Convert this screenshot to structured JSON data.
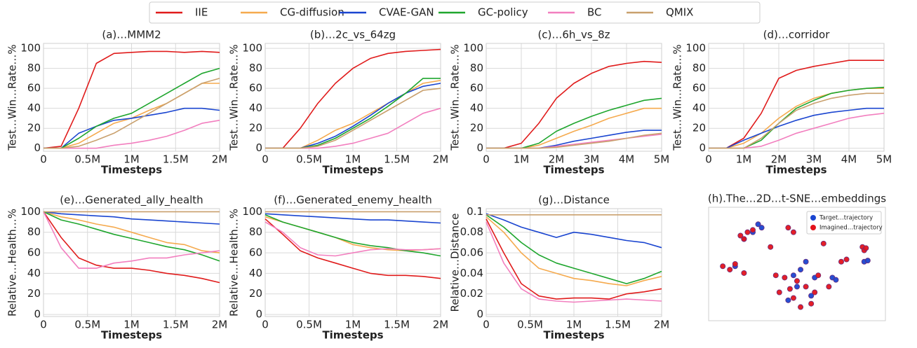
{
  "legend": {
    "series": [
      {
        "name": "IIE",
        "color": "#e01b1b"
      },
      {
        "name": "CG-diffusion",
        "color": "#f5aa4e"
      },
      {
        "name": "CVAE-GAN",
        "color": "#1a45d0"
      },
      {
        "name": "GC-policy",
        "color": "#1fa62e"
      },
      {
        "name": "BC",
        "color": "#f27fbf"
      },
      {
        "name": "QMIX",
        "color": "#c9a06d"
      }
    ]
  },
  "chart_data": [
    {
      "type": "line",
      "title": "(a)…MMM2",
      "xlabel": "Timesteps",
      "ylabel": "Test…Win…Rate…%",
      "grid": true,
      "x": [
        0,
        200000,
        400000,
        600000,
        800000,
        1000000,
        1200000,
        1400000,
        1600000,
        1800000,
        2000000
      ],
      "xlim": [
        0,
        2000000
      ],
      "xticks": [
        0,
        {
          "value": 500000,
          "label": "0.5M"
        },
        {
          "value": 1000000,
          "label": "1M"
        },
        {
          "value": 1500000,
          "label": "1.5M"
        },
        {
          "value": 2000000,
          "label": "2M"
        }
      ],
      "ylim": [
        -3,
        105
      ],
      "yticks": [
        0,
        20,
        40,
        60,
        80,
        100
      ],
      "series": [
        {
          "values": [
            0,
            2,
            40,
            85,
            95,
            96,
            97,
            97,
            96,
            97,
            96
          ]
        },
        {
          "values": [
            0,
            0,
            5,
            15,
            25,
            30,
            38,
            45,
            55,
            65,
            65
          ]
        },
        {
          "values": [
            0,
            0,
            15,
            22,
            28,
            30,
            33,
            36,
            40,
            40,
            38
          ]
        },
        {
          "values": [
            0,
            0,
            10,
            22,
            30,
            35,
            45,
            55,
            65,
            75,
            80
          ]
        },
        {
          "values": [
            0,
            0,
            0,
            0,
            3,
            5,
            8,
            12,
            18,
            25,
            28
          ]
        },
        {
          "values": [
            0,
            0,
            2,
            8,
            15,
            25,
            35,
            45,
            55,
            65,
            70
          ]
        }
      ]
    },
    {
      "type": "line",
      "title": "(b)…2c_vs_64zg",
      "xlabel": "Timesteps",
      "ylabel": "Test…Win…Rate…%",
      "grid": true,
      "x": [
        0,
        200000,
        400000,
        600000,
        800000,
        1000000,
        1200000,
        1400000,
        1600000,
        1800000,
        2000000
      ],
      "xlim": [
        0,
        2000000
      ],
      "xticks": [
        0,
        {
          "value": 500000,
          "label": "0.5M"
        },
        {
          "value": 1000000,
          "label": "1M"
        },
        {
          "value": 1500000,
          "label": "1.5M"
        },
        {
          "value": 2000000,
          "label": "2M"
        }
      ],
      "ylim": [
        -3,
        105
      ],
      "yticks": [
        0,
        20,
        40,
        60,
        80,
        100
      ],
      "series": [
        {
          "values": [
            0,
            0,
            20,
            45,
            65,
            80,
            90,
            95,
            97,
            98,
            99
          ]
        },
        {
          "values": [
            0,
            0,
            0,
            8,
            18,
            25,
            35,
            45,
            55,
            65,
            68
          ]
        },
        {
          "values": [
            0,
            0,
            0,
            5,
            12,
            22,
            33,
            45,
            55,
            62,
            65
          ]
        },
        {
          "values": [
            0,
            0,
            0,
            3,
            10,
            20,
            30,
            42,
            55,
            70,
            70
          ]
        },
        {
          "values": [
            0,
            0,
            0,
            0,
            2,
            5,
            10,
            15,
            25,
            35,
            40
          ]
        },
        {
          "values": [
            0,
            0,
            0,
            2,
            8,
            18,
            28,
            38,
            48,
            58,
            60
          ]
        }
      ]
    },
    {
      "type": "line",
      "title": "(c)…6h_vs_8z",
      "xlabel": "Timesteps",
      "ylabel": "Test…Win…Rate…%",
      "grid": true,
      "x": [
        0,
        500000,
        1000000,
        1500000,
        2000000,
        2500000,
        3000000,
        3500000,
        4000000,
        4500000,
        5000000
      ],
      "xlim": [
        0,
        5000000
      ],
      "xticks": [
        0,
        {
          "value": 1000000,
          "label": "1M"
        },
        {
          "value": 2000000,
          "label": "2M"
        },
        {
          "value": 3000000,
          "label": "3M"
        },
        {
          "value": 4000000,
          "label": "4M"
        },
        {
          "value": 5000000,
          "label": "5M"
        }
      ],
      "ylim": [
        -3,
        105
      ],
      "yticks": [
        0,
        20,
        40,
        60,
        80,
        100
      ],
      "series": [
        {
          "values": [
            0,
            0,
            5,
            25,
            50,
            65,
            75,
            82,
            85,
            87,
            86
          ]
        },
        {
          "values": [
            0,
            0,
            0,
            3,
            10,
            17,
            23,
            30,
            35,
            40,
            40
          ]
        },
        {
          "values": [
            0,
            0,
            0,
            0,
            3,
            7,
            10,
            13,
            16,
            18,
            18
          ]
        },
        {
          "values": [
            0,
            0,
            0,
            5,
            17,
            25,
            32,
            38,
            43,
            48,
            50
          ]
        },
        {
          "values": [
            0,
            0,
            0,
            0,
            2,
            4,
            6,
            8,
            10,
            12,
            14
          ]
        },
        {
          "values": [
            0,
            0,
            0,
            0,
            1,
            3,
            5,
            7,
            10,
            13,
            15
          ]
        }
      ]
    },
    {
      "type": "line",
      "title": "(d)…corridor",
      "xlabel": "Timesteps",
      "ylabel": "Test…Win…Rate…%",
      "grid": true,
      "x": [
        0,
        500000,
        1000000,
        1500000,
        2000000,
        2500000,
        3000000,
        3500000,
        4000000,
        4500000,
        5000000
      ],
      "xlim": [
        0,
        5000000
      ],
      "xticks": [
        0,
        {
          "value": 1000000,
          "label": "1M"
        },
        {
          "value": 2000000,
          "label": "2M"
        },
        {
          "value": 3000000,
          "label": "3M"
        },
        {
          "value": 4000000,
          "label": "4M"
        },
        {
          "value": 5000000,
          "label": "5M"
        }
      ],
      "ylim": [
        -3,
        105
      ],
      "yticks": [
        0,
        20,
        40,
        60,
        80,
        100
      ],
      "series": [
        {
          "values": [
            0,
            0,
            10,
            35,
            70,
            78,
            82,
            85,
            88,
            88,
            88
          ]
        },
        {
          "values": [
            0,
            0,
            5,
            15,
            30,
            42,
            50,
            55,
            58,
            60,
            60
          ]
        },
        {
          "values": [
            0,
            0,
            8,
            15,
            22,
            28,
            33,
            36,
            38,
            40,
            40
          ]
        },
        {
          "values": [
            0,
            0,
            0,
            8,
            25,
            40,
            48,
            55,
            58,
            60,
            61
          ]
        },
        {
          "values": [
            0,
            0,
            0,
            2,
            8,
            15,
            20,
            25,
            30,
            33,
            35
          ]
        },
        {
          "values": [
            0,
            0,
            0,
            10,
            25,
            38,
            45,
            50,
            53,
            55,
            55
          ]
        }
      ]
    },
    {
      "type": "line",
      "title": "(e)…Generated_ally_health",
      "xlabel": "Timesteps",
      "ylabel": "Relative…Health…%",
      "grid": true,
      "x": [
        0,
        200000,
        400000,
        600000,
        800000,
        1000000,
        1200000,
        1400000,
        1600000,
        1800000,
        2000000
      ],
      "xlim": [
        0,
        2000000
      ],
      "xticks": [
        0,
        {
          "value": 500000,
          "label": "0.5M"
        },
        {
          "value": 1000000,
          "label": "1M"
        },
        {
          "value": 1500000,
          "label": "1.5M"
        },
        {
          "value": 2000000,
          "label": "2M"
        }
      ],
      "ylim": [
        -2,
        103
      ],
      "yticks": [
        0,
        20,
        40,
        60,
        80,
        100
      ],
      "series": [
        {
          "values": [
            100,
            75,
            55,
            48,
            45,
            45,
            43,
            40,
            38,
            35,
            31
          ]
        },
        {
          "values": [
            100,
            95,
            92,
            88,
            85,
            80,
            75,
            70,
            68,
            62,
            60
          ]
        },
        {
          "values": [
            100,
            98,
            97,
            96,
            95,
            93,
            92,
            91,
            90,
            89,
            88
          ]
        },
        {
          "values": [
            100,
            92,
            88,
            83,
            78,
            74,
            70,
            66,
            63,
            58,
            52
          ]
        },
        {
          "values": [
            100,
            65,
            45,
            45,
            50,
            52,
            55,
            55,
            58,
            60,
            62
          ]
        },
        {
          "values": [
            100,
            100,
            100,
            100,
            100,
            100,
            100,
            100,
            100,
            100,
            100
          ]
        }
      ]
    },
    {
      "type": "line",
      "title": "(f)…Generated_enemy_health",
      "xlabel": "Timesteps",
      "ylabel": "Relative…Health…%",
      "grid": true,
      "x": [
        0,
        200000,
        400000,
        600000,
        800000,
        1000000,
        1200000,
        1400000,
        1600000,
        1800000,
        2000000
      ],
      "xlim": [
        0,
        2000000
      ],
      "xticks": [
        0,
        {
          "value": 500000,
          "label": "0.5M"
        },
        {
          "value": 1000000,
          "label": "1M"
        },
        {
          "value": 1500000,
          "label": "1.5M"
        },
        {
          "value": 2000000,
          "label": "2M"
        }
      ],
      "ylim": [
        -2,
        103
      ],
      "yticks": [
        0,
        20,
        40,
        60,
        80,
        100
      ],
      "series": [
        {
          "values": [
            93,
            78,
            62,
            55,
            50,
            45,
            40,
            38,
            38,
            37,
            35
          ]
        },
        {
          "values": [
            95,
            90,
            85,
            80,
            75,
            68,
            65,
            63,
            62,
            63,
            64
          ]
        },
        {
          "values": [
            98,
            97,
            96,
            95,
            94,
            93,
            92,
            92,
            91,
            90,
            89
          ]
        },
        {
          "values": [
            97,
            90,
            85,
            80,
            75,
            70,
            67,
            65,
            62,
            60,
            57
          ]
        },
        {
          "values": [
            90,
            80,
            65,
            58,
            57,
            60,
            63,
            64,
            63,
            63,
            64
          ]
        },
        {
          "values": [
            100,
            100,
            100,
            100,
            100,
            100,
            100,
            100,
            100,
            100,
            100
          ]
        }
      ]
    },
    {
      "type": "line",
      "title": "(g)…Distance",
      "xlabel": "Timesteps",
      "ylabel": "Relative…Distance",
      "grid": true,
      "x": [
        0,
        200000,
        400000,
        600000,
        800000,
        1000000,
        1200000,
        1400000,
        1600000,
        1800000,
        2000000
      ],
      "xlim": [
        0,
        2000000
      ],
      "xticks": [
        0,
        {
          "value": 500000,
          "label": "0.5M"
        },
        {
          "value": 1000000,
          "label": "1M"
        },
        {
          "value": 1500000,
          "label": "1.5M"
        },
        {
          "value": 2000000,
          "label": "2M"
        }
      ],
      "ylim": [
        -0.002,
        0.103
      ],
      "yticks": [
        0,
        0.02,
        0.04,
        0.06,
        0.08,
        0.1
      ],
      "series": [
        {
          "values": [
            0.093,
            0.06,
            0.03,
            0.018,
            0.015,
            0.016,
            0.016,
            0.015,
            0.02,
            0.022,
            0.025
          ]
        },
        {
          "values": [
            0.095,
            0.08,
            0.06,
            0.045,
            0.04,
            0.035,
            0.033,
            0.03,
            0.028,
            0.033,
            0.037
          ]
        },
        {
          "values": [
            0.098,
            0.092,
            0.085,
            0.08,
            0.075,
            0.08,
            0.078,
            0.075,
            0.072,
            0.07,
            0.065
          ]
        },
        {
          "values": [
            0.097,
            0.085,
            0.07,
            0.058,
            0.05,
            0.045,
            0.04,
            0.035,
            0.03,
            0.035,
            0.042
          ]
        },
        {
          "values": [
            0.09,
            0.05,
            0.025,
            0.015,
            0.013,
            0.012,
            0.013,
            0.014,
            0.015,
            0.014,
            0.013
          ]
        },
        {
          "values": [
            0.097,
            0.097,
            0.097,
            0.097,
            0.097,
            0.097,
            0.097,
            0.097,
            0.097,
            0.097,
            0.097
          ]
        }
      ]
    },
    {
      "type": "scatter",
      "title": "(h).The…2D…t-SNE…embeddings",
      "legend": "upper right",
      "xlim": [
        0,
        100
      ],
      "ylim": [
        0,
        100
      ],
      "series": [
        {
          "name": "Target…trajectory",
          "color": "#1a45d0",
          "x": [
            28,
            30,
            15,
            20,
            48,
            52,
            55,
            50,
            58,
            70,
            72,
            60,
            45,
            25,
            88,
            90
          ],
          "y": [
            85,
            82,
            48,
            72,
            40,
            45,
            52,
            30,
            22,
            38,
            36,
            38,
            18,
            78,
            52,
            53
          ]
        },
        {
          "name": "Imagined…trajectory",
          "color": "#e3131b",
          "x": [
            18,
            20,
            22,
            25,
            12,
            8,
            15,
            20,
            45,
            48,
            60,
            65,
            75,
            78,
            43,
            50,
            55,
            60,
            58,
            48,
            40,
            38,
            62,
            68,
            52,
            46,
            87,
            88,
            89,
            35
          ],
          "y": [
            75,
            72,
            78,
            80,
            45,
            48,
            50,
            42,
            82,
            78,
            90,
            68,
            52,
            54,
            38,
            35,
            30,
            25,
            15,
            20,
            25,
            40,
            40,
            30,
            12,
            28,
            65,
            62,
            64,
            65
          ]
        }
      ]
    }
  ]
}
